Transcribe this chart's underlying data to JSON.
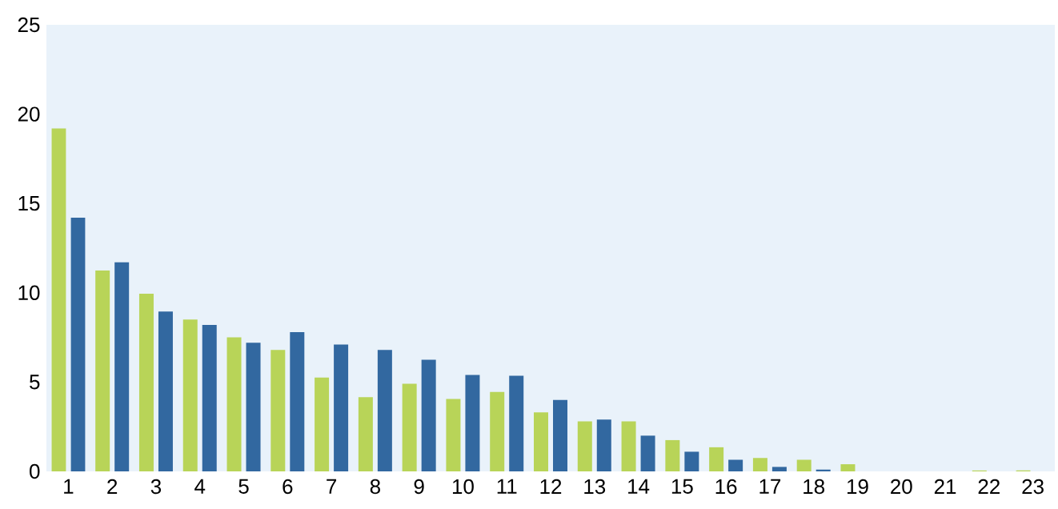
{
  "chart_data": {
    "type": "bar",
    "categories": [
      "1",
      "2",
      "3",
      "4",
      "5",
      "6",
      "7",
      "8",
      "9",
      "10",
      "11",
      "12",
      "13",
      "14",
      "15",
      "16",
      "17",
      "18",
      "19",
      "20",
      "21",
      "22",
      "23"
    ],
    "series": [
      {
        "color": "#b8d458",
        "values": [
          19.2,
          11.25,
          9.95,
          8.5,
          7.5,
          6.8,
          5.25,
          4.15,
          4.9,
          4.05,
          4.45,
          3.3,
          2.8,
          2.8,
          1.75,
          1.35,
          0.75,
          0.65,
          0.4,
          0,
          0,
          0.05,
          0.05
        ]
      },
      {
        "color": "#3268a0",
        "values": [
          14.2,
          11.7,
          8.95,
          8.2,
          7.2,
          7.8,
          7.1,
          6.8,
          6.25,
          5.4,
          5.35,
          4.0,
          2.9,
          2.0,
          1.1,
          0.65,
          0.25,
          0.1,
          0,
          0,
          0,
          0,
          0
        ]
      }
    ],
    "ylim": [
      0,
      25
    ],
    "yticks": [
      0,
      5,
      10,
      15,
      20,
      25
    ]
  }
}
